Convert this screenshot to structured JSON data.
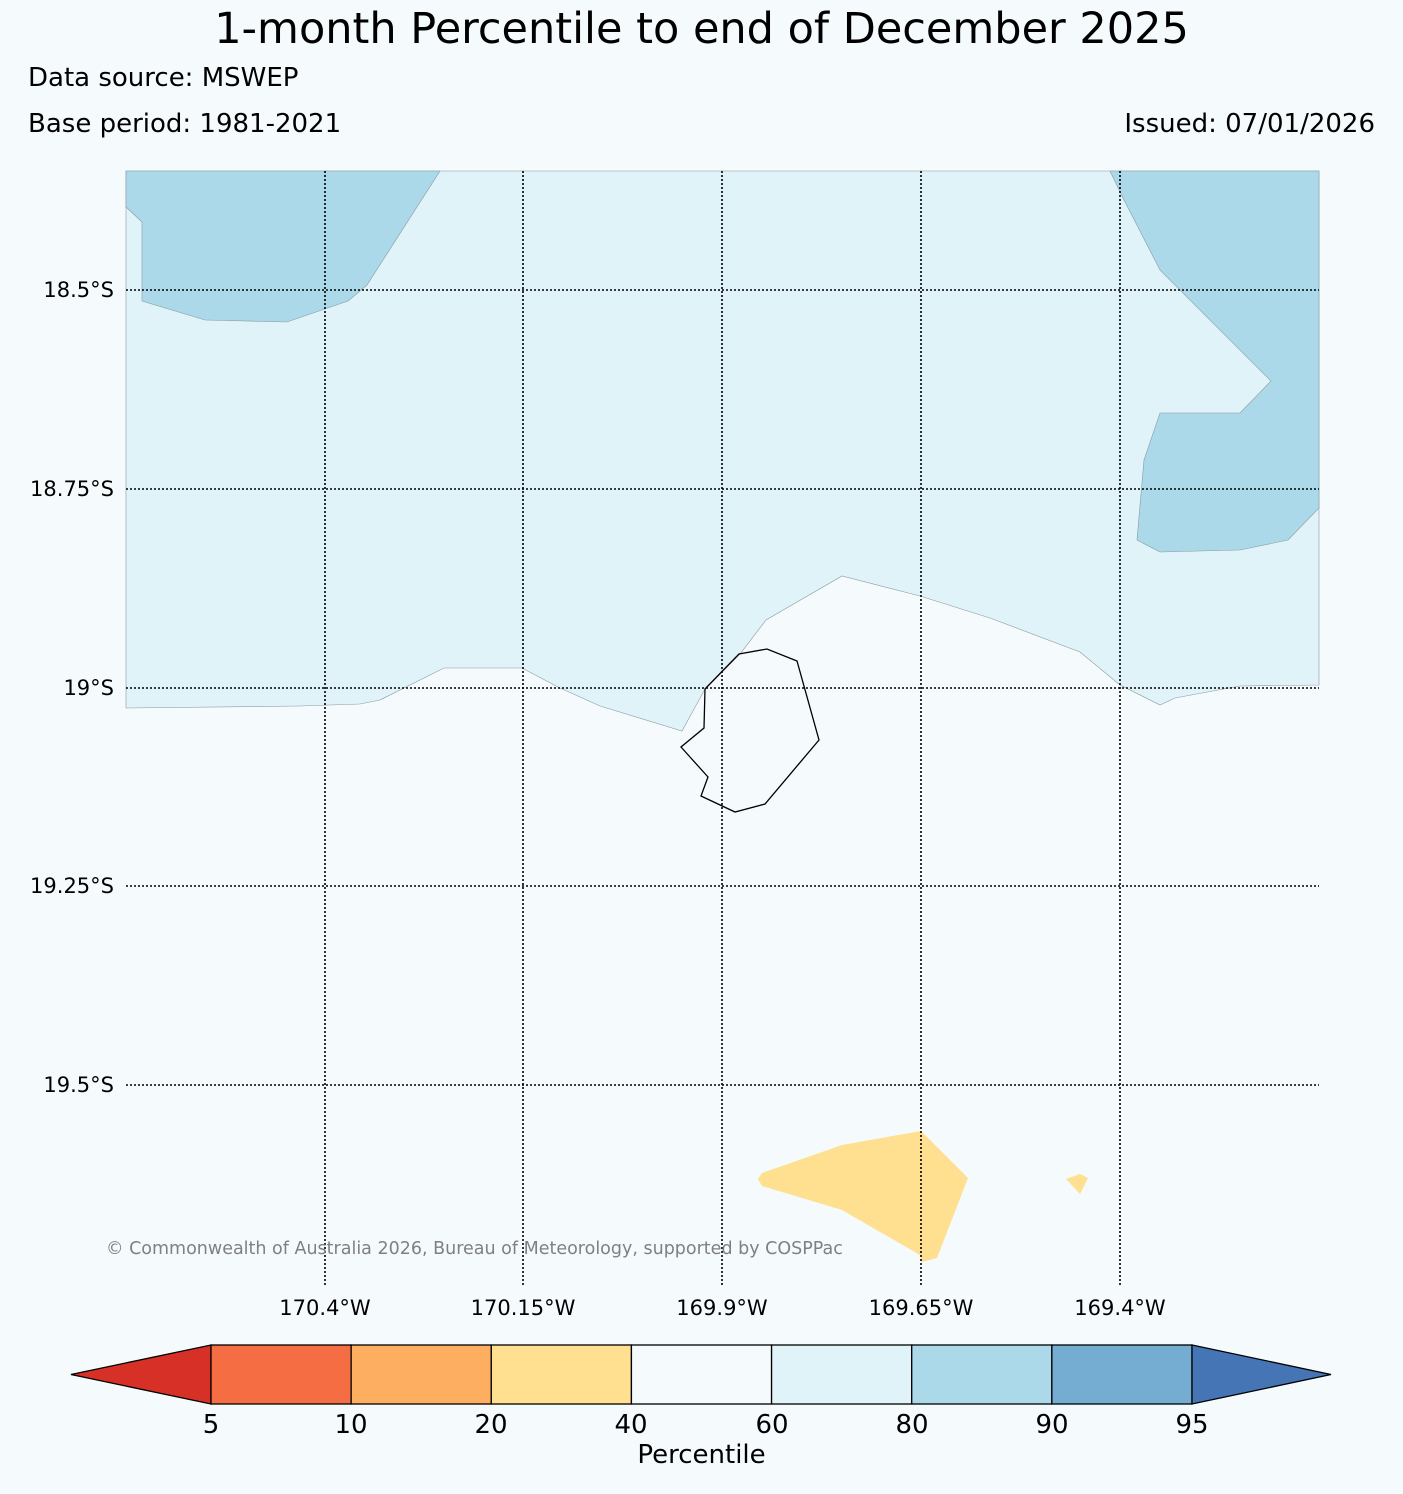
{
  "header": {
    "title": "1-month Percentile to end of December 2025",
    "data_source": "Data source: MSWEP",
    "base_period": "Base period: 1981-2021",
    "issued": "Issued: 07/01/2026"
  },
  "map": {
    "lat_labels": [
      "18.5°S",
      "18.75°S",
      "19°S",
      "19.25°S",
      "19.5°S"
    ],
    "lon_labels": [
      "170.4°W",
      "170.15°W",
      "169.9°W",
      "169.65°W",
      "169.4°W"
    ],
    "copyright": "© Commonwealth of Australia 2026, Bureau of Meteorology, supported by COSPPac",
    "category_colors": {
      "60-80": "#e0f3f8",
      "80-90": "#abd9e9",
      "20-40": "#fee090",
      "40-60": "#f5fafd"
    }
  },
  "colorbar": {
    "label": "Percentile",
    "ticks": [
      "5",
      "10",
      "20",
      "40",
      "60",
      "80",
      "90",
      "95"
    ],
    "colors": [
      "#d73027",
      "#f46d43",
      "#fdae61",
      "#fee090",
      "#f5fafd",
      "#e0f3f8",
      "#abd9e9",
      "#74add1",
      "#4575b4"
    ]
  }
}
